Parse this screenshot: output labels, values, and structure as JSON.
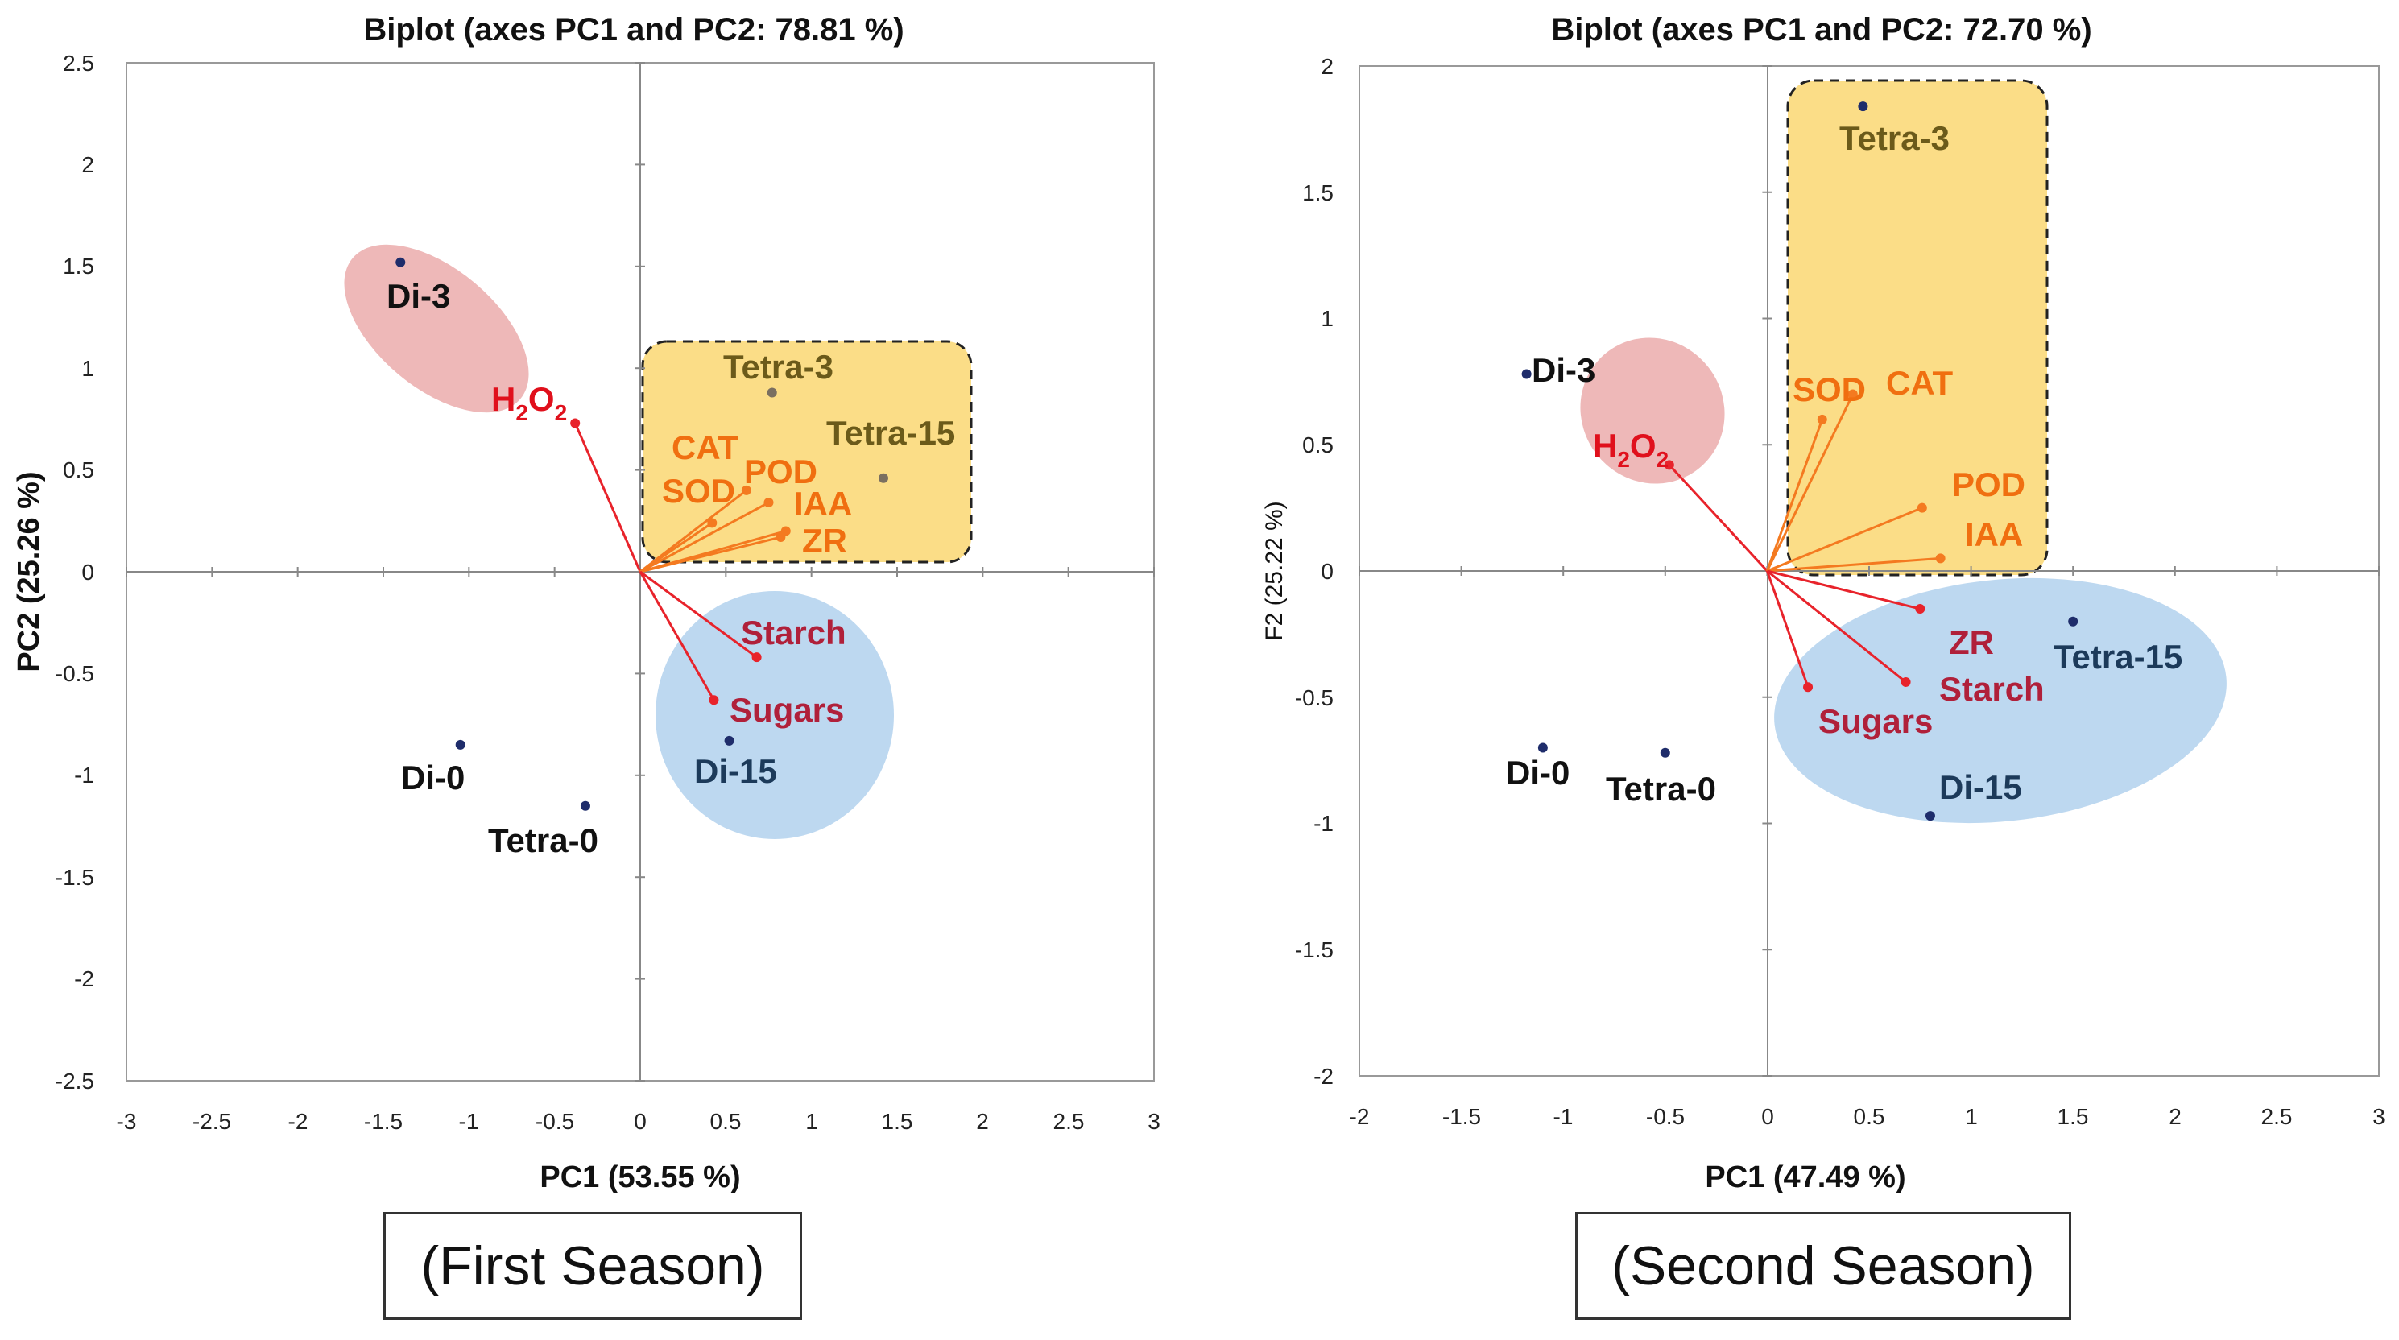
{
  "chart_data": [
    {
      "type": "scatter",
      "subtype": "biplot",
      "title": "Biplot (axes PC1 and PC2: 78.81 %)",
      "xlabel": "PC1 (53.55 %)",
      "ylabel": "PC2 (25.26 %)",
      "xlim": [
        -3,
        3
      ],
      "ylim": [
        -2.5,
        2.5
      ],
      "xticks": [
        -3,
        -2.5,
        -2,
        -1.5,
        -1,
        -0.5,
        0,
        0.5,
        1,
        1.5,
        2,
        2.5,
        3
      ],
      "yticks": [
        -2.5,
        -2,
        -1.5,
        -1,
        -0.5,
        0,
        0.5,
        1,
        1.5,
        2,
        2.5
      ],
      "caption": "(First Season)",
      "observations": [
        {
          "name": "Di-3",
          "x": -1.4,
          "y": 1.52
        },
        {
          "name": "Tetra-3",
          "x": 0.77,
          "y": 0.88
        },
        {
          "name": "Tetra-15",
          "x": 1.42,
          "y": 0.46
        },
        {
          "name": "Di-0",
          "x": -1.05,
          "y": -0.85
        },
        {
          "name": "Tetra-0",
          "x": -0.32,
          "y": -1.15
        },
        {
          "name": "Di-15",
          "x": 0.52,
          "y": -0.83
        }
      ],
      "variables": [
        {
          "name": "H2O2",
          "label_main": "H",
          "label_sub": "2",
          "label_main2": "O",
          "label_sub2": "2",
          "x": -0.38,
          "y": 0.73
        },
        {
          "name": "CAT",
          "x": 0.62,
          "y": 0.4
        },
        {
          "name": "POD",
          "x": 0.75,
          "y": 0.34
        },
        {
          "name": "SOD",
          "x": 0.42,
          "y": 0.24
        },
        {
          "name": "IAA",
          "x": 0.85,
          "y": 0.2
        },
        {
          "name": "ZR",
          "x": 0.82,
          "y": 0.17
        },
        {
          "name": "Starch",
          "x": 0.68,
          "y": -0.42
        },
        {
          "name": "Sugars",
          "x": 0.43,
          "y": -0.63
        }
      ],
      "groups": [
        {
          "name": "pink-group",
          "color": "#e8a0a0",
          "members": [
            "Di-3",
            "H2O2"
          ]
        },
        {
          "name": "yellow-group",
          "color": "#fbd97a",
          "members": [
            "Tetra-3",
            "Tetra-15",
            "CAT",
            "POD",
            "SOD",
            "IAA",
            "ZR"
          ]
        },
        {
          "name": "blue-group",
          "color": "#b6d4ee",
          "members": [
            "Di-15",
            "Starch",
            "Sugars"
          ]
        }
      ]
    },
    {
      "type": "scatter",
      "subtype": "biplot",
      "title": "Biplot (axes PC1 and PC2: 72.70 %)",
      "xlabel": "PC1 (47.49 %)",
      "ylabel": "F2 (25.22 %)",
      "xlim": [
        -2,
        3
      ],
      "ylim": [
        -2,
        2
      ],
      "xticks": [
        -2,
        -1.5,
        -1,
        -0.5,
        0,
        0.5,
        1,
        1.5,
        2,
        2.5,
        3
      ],
      "yticks": [
        -2,
        -1.5,
        -1,
        -0.5,
        0,
        0.5,
        1,
        1.5,
        2
      ],
      "caption": "(Second Season)",
      "observations": [
        {
          "name": "Tetra-3",
          "x": 0.47,
          "y": 1.84
        },
        {
          "name": "Di-3",
          "x": -1.18,
          "y": 0.78
        },
        {
          "name": "Tetra-15",
          "x": 1.5,
          "y": -0.2
        },
        {
          "name": "Di-0",
          "x": -1.1,
          "y": -0.7
        },
        {
          "name": "Tetra-0",
          "x": -0.5,
          "y": -0.72
        },
        {
          "name": "Di-15",
          "x": 0.8,
          "y": -0.97
        }
      ],
      "variables": [
        {
          "name": "H2O2",
          "label_main": "H",
          "label_sub": "2",
          "label_main2": "O",
          "label_sub2": "2",
          "x": -0.48,
          "y": 0.42
        },
        {
          "name": "SOD",
          "x": 0.27,
          "y": 0.6
        },
        {
          "name": "CAT",
          "x": 0.42,
          "y": 0.7
        },
        {
          "name": "POD",
          "x": 0.76,
          "y": 0.25
        },
        {
          "name": "IAA",
          "x": 0.85,
          "y": 0.05
        },
        {
          "name": "ZR",
          "x": 0.75,
          "y": -0.15
        },
        {
          "name": "Starch",
          "x": 0.68,
          "y": -0.44
        },
        {
          "name": "Sugars",
          "x": 0.2,
          "y": -0.46
        }
      ],
      "groups": [
        {
          "name": "pink-group",
          "color": "#e8a0a0",
          "members": [
            "Di-3",
            "H2O2"
          ]
        },
        {
          "name": "yellow-group",
          "color": "#fbd97a",
          "members": [
            "Tetra-3",
            "SOD",
            "CAT",
            "POD",
            "IAA"
          ]
        },
        {
          "name": "blue-group",
          "color": "#b6d4ee",
          "members": [
            "Tetra-15",
            "Di-15",
            "ZR",
            "Starch",
            "Sugars"
          ]
        }
      ]
    }
  ],
  "colors": {
    "vector": "#e8232b",
    "orange_vector": "#f47a20",
    "point": "#1f2d6b",
    "obs_label": "#111111",
    "obs_label_yellow": "#6b5a1a",
    "obs_label_blue": "#1c3a5a",
    "h2o2_label": "#e0101c",
    "orange_label": "#f06f10",
    "maroon_label": "#b0203a"
  }
}
